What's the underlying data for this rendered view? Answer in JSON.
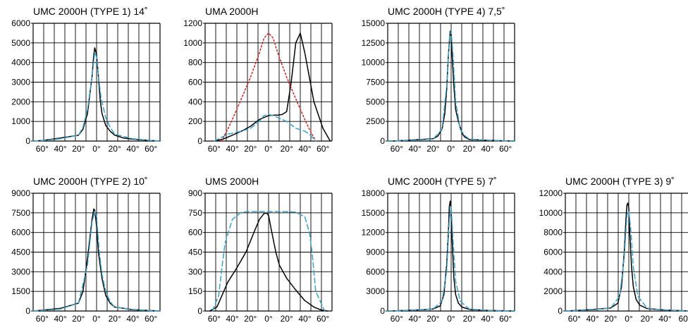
{
  "chart_data": [
    {
      "type": "line",
      "title": "UMC 2000H (TYPE 1) 14˚",
      "ylim": [
        0,
        6000
      ],
      "yticks": [
        "6000",
        "5000",
        "4000",
        "3000",
        "2000",
        "1000",
        "0"
      ],
      "xticks": [
        "60°",
        "40°",
        "20°",
        "0°",
        "20°",
        "40°",
        "60°"
      ],
      "x_range": [
        -70,
        70
      ],
      "grid": true,
      "series": [
        {
          "style": "solid",
          "color": "#000000",
          "x": [
            -70,
            -60,
            -40,
            -20,
            -15,
            -10,
            -5,
            -3,
            -2,
            0,
            2,
            4,
            6,
            10,
            15,
            20,
            30,
            40,
            60,
            70
          ],
          "values": [
            0,
            30,
            150,
            300,
            600,
            1400,
            3300,
            4400,
            4750,
            4400,
            3300,
            2100,
            1400,
            800,
            500,
            300,
            150,
            100,
            30,
            0
          ]
        },
        {
          "style": "dashed",
          "color": "#3aa0c8",
          "x": [
            -70,
            -60,
            -40,
            -20,
            -15,
            -10,
            -5,
            -2,
            0,
            2,
            5,
            10,
            15,
            20,
            40,
            60,
            70
          ],
          "values": [
            0,
            20,
            120,
            300,
            700,
            1600,
            3300,
            4500,
            4300,
            3300,
            2200,
            1200,
            700,
            350,
            120,
            30,
            0
          ]
        }
      ]
    },
    {
      "type": "line",
      "title": "UMA 2000H",
      "ylim": [
        0,
        1200
      ],
      "yticks": [
        "1200",
        "1000",
        "800",
        "600",
        "400",
        "200",
        "0"
      ],
      "xticks": [
        "60°",
        "40°",
        "20°",
        "0°",
        "20°",
        "40°",
        "60°"
      ],
      "x_range": [
        -70,
        70
      ],
      "grid": true,
      "series": [
        {
          "style": "solid",
          "color": "#000000",
          "x": [
            -60,
            -50,
            -40,
            -30,
            -20,
            -10,
            0,
            10,
            15,
            20,
            25,
            30,
            35,
            40,
            50,
            60,
            68
          ],
          "values": [
            0,
            20,
            60,
            100,
            150,
            220,
            260,
            265,
            270,
            300,
            600,
            1000,
            1100,
            900,
            400,
            130,
            0
          ]
        },
        {
          "style": "dotted",
          "color": "#cc2222",
          "x": [
            -52,
            -45,
            -40,
            -30,
            -20,
            -10,
            -5,
            0,
            5,
            10,
            20,
            30,
            40,
            45,
            52
          ],
          "values": [
            0,
            120,
            220,
            430,
            650,
            900,
            1050,
            1100,
            1050,
            900,
            650,
            430,
            220,
            120,
            0
          ]
        },
        {
          "style": "dashed",
          "color": "#3aa0c8",
          "x": [
            -60,
            -45,
            -30,
            -20,
            -10,
            -5,
            0,
            5,
            10,
            20,
            30,
            40,
            45,
            52
          ],
          "values": [
            0,
            70,
            100,
            130,
            200,
            260,
            270,
            260,
            240,
            200,
            130,
            100,
            70,
            0
          ]
        }
      ]
    },
    {
      "type": "line",
      "title": "UMC 2000H (TYPE 4) 7,5˚",
      "ylim": [
        0,
        15000
      ],
      "yticks": [
        "15000",
        "12500",
        "10000",
        "7500",
        "5000",
        "2500",
        "0"
      ],
      "xticks": [
        "60°",
        "40°",
        "20°",
        "0°",
        "20°",
        "40°",
        "60°"
      ],
      "x_range": [
        -70,
        70
      ],
      "grid": true,
      "series": [
        {
          "style": "solid",
          "color": "#000000",
          "x": [
            -70,
            -60,
            -40,
            -20,
            -15,
            -10,
            -7,
            -5,
            -3,
            -1,
            0,
            1,
            3,
            5,
            8,
            12,
            15,
            20,
            40,
            60,
            70
          ],
          "values": [
            0,
            30,
            150,
            300,
            600,
            1500,
            3500,
            6500,
            11000,
            14000,
            13700,
            11000,
            7000,
            4000,
            2500,
            1000,
            500,
            200,
            100,
            30,
            0
          ]
        },
        {
          "style": "dashed",
          "color": "#3aa0c8",
          "x": [
            -70,
            -60,
            -40,
            -20,
            -10,
            -5,
            -2,
            0,
            2,
            5,
            10,
            15,
            20,
            40,
            70
          ],
          "values": [
            0,
            20,
            120,
            250,
            1500,
            7000,
            13000,
            14000,
            11000,
            5000,
            1500,
            700,
            250,
            80,
            0
          ]
        }
      ]
    },
    {
      "type": "line",
      "title": "UMC 2000H (TYPE 2) 10˚",
      "ylim": [
        0,
        9000
      ],
      "yticks": [
        "9000",
        "7500",
        "6000",
        "4500",
        "3000",
        "1500",
        "0"
      ],
      "xticks": [
        "60°",
        "40°",
        "20°",
        "0°",
        "20°",
        "40°",
        "60°"
      ],
      "x_range": [
        -70,
        70
      ],
      "grid": true,
      "series": [
        {
          "style": "solid",
          "color": "#000000",
          "x": [
            -70,
            -60,
            -40,
            -20,
            -15,
            -10,
            -5,
            -3,
            -2,
            0,
            2,
            4,
            6,
            10,
            15,
            20,
            40,
            60,
            70
          ],
          "values": [
            0,
            60,
            200,
            600,
            1500,
            4000,
            7000,
            7800,
            7700,
            6500,
            4500,
            3500,
            2500,
            1200,
            600,
            300,
            100,
            30,
            0
          ]
        },
        {
          "style": "dashed",
          "color": "#3aa0c8",
          "x": [
            -70,
            -60,
            -40,
            -20,
            -10,
            -5,
            -2,
            0,
            3,
            6,
            10,
            15,
            20,
            40,
            70
          ],
          "values": [
            0,
            40,
            150,
            600,
            3500,
            6800,
            7600,
            7200,
            4500,
            2800,
            1500,
            700,
            300,
            80,
            0
          ]
        }
      ]
    },
    {
      "type": "line",
      "title": "UMS 2000H",
      "ylim": [
        0,
        900
      ],
      "yticks": [
        "900",
        "750",
        "600",
        "450",
        "300",
        "150",
        "0"
      ],
      "xticks": [
        "60°",
        "40°",
        "20°",
        "0°",
        "20°",
        "40°",
        "60°"
      ],
      "x_range": [
        -70,
        70
      ],
      "grid": true,
      "series": [
        {
          "style": "solid",
          "color": "#000000",
          "x": [
            -65,
            -57,
            -45,
            -35,
            -25,
            -15,
            -10,
            -5,
            -2,
            0,
            3,
            8,
            12,
            20,
            30,
            40,
            50,
            57,
            65
          ],
          "values": [
            0,
            30,
            220,
            330,
            450,
            620,
            700,
            745,
            748,
            730,
            620,
            450,
            350,
            250,
            160,
            80,
            30,
            10,
            0
          ]
        },
        {
          "style": "dashed",
          "color": "#3aa0c8",
          "x": [
            -62,
            -55,
            -52,
            -48,
            -40,
            -30,
            -20,
            -10,
            0,
            10,
            20,
            30,
            40,
            45,
            48,
            52,
            62
          ],
          "values": [
            0,
            120,
            300,
            520,
            700,
            755,
            760,
            760,
            760,
            760,
            760,
            755,
            720,
            600,
            450,
            150,
            0
          ]
        }
      ]
    },
    {
      "type": "line",
      "title": "UMC 2000H (TYPE 5) 7˚",
      "ylim": [
        0,
        18000
      ],
      "yticks": [
        "18000",
        "15000",
        "12000",
        "9000",
        "6000",
        "3000",
        "0"
      ],
      "xticks": [
        "60°",
        "40°",
        "20°",
        "0°",
        "20°",
        "40°",
        "60°"
      ],
      "x_range": [
        -70,
        70
      ],
      "grid": true,
      "series": [
        {
          "style": "solid",
          "color": "#000000",
          "x": [
            -70,
            -60,
            -40,
            -20,
            -12,
            -8,
            -5,
            -3,
            -2,
            -1,
            0,
            1,
            3,
            5,
            8,
            12,
            20,
            40,
            60,
            70
          ],
          "values": [
            0,
            40,
            150,
            300,
            800,
            2500,
            7000,
            12000,
            16000,
            16800,
            15500,
            11000,
            5000,
            2500,
            1200,
            600,
            250,
            100,
            30,
            0
          ]
        },
        {
          "style": "dashed",
          "color": "#3aa0c8",
          "x": [
            -70,
            -60,
            -40,
            -20,
            -10,
            -5,
            -2,
            0,
            2,
            5,
            10,
            20,
            40,
            70
          ],
          "values": [
            0,
            30,
            120,
            300,
            1500,
            6000,
            14000,
            16000,
            11000,
            4500,
            1500,
            300,
            80,
            0
          ]
        }
      ]
    },
    {
      "type": "line",
      "title": "UMC 2000H (TYPE 3) 9˚",
      "ylim": [
        0,
        12000
      ],
      "yticks": [
        "12000",
        "10000",
        "8000",
        "6000",
        "4000",
        "2000",
        "0"
      ],
      "xticks": [
        "60°",
        "40°",
        "20°",
        "0°",
        "20°",
        "40°",
        "60"
      ],
      "x_range": [
        -70,
        70
      ],
      "grid": true,
      "series": [
        {
          "style": "solid",
          "color": "#000000",
          "x": [
            -70,
            -60,
            -40,
            -20,
            -12,
            -8,
            -5,
            -3,
            -2,
            -1,
            0,
            1,
            3,
            5,
            8,
            12,
            20,
            40,
            60,
            70
          ],
          "values": [
            0,
            40,
            150,
            300,
            800,
            2500,
            6000,
            9500,
            10800,
            11000,
            10500,
            8000,
            4500,
            2500,
            1200,
            600,
            250,
            100,
            30,
            0
          ]
        },
        {
          "style": "dashed",
          "color": "#3aa0c8",
          "x": [
            -70,
            -60,
            -40,
            -20,
            -10,
            -5,
            -2,
            0,
            2,
            5,
            10,
            20,
            40,
            70
          ],
          "values": [
            0,
            30,
            120,
            300,
            1500,
            5500,
            9800,
            10200,
            8500,
            4500,
            1500,
            300,
            80,
            0
          ]
        }
      ]
    }
  ]
}
